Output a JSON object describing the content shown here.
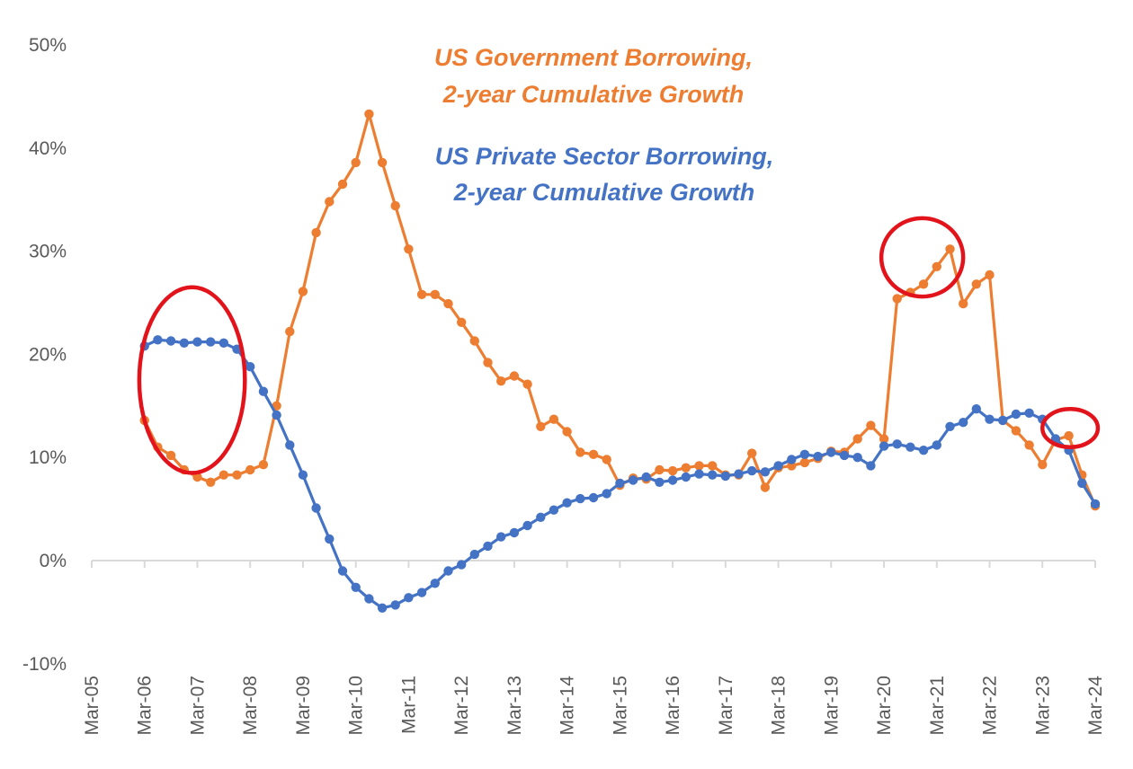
{
  "chart_data": {
    "type": "line",
    "title": "",
    "xlabel": "",
    "ylabel": "",
    "ylim": [
      -10,
      50
    ],
    "y_ticks": [
      "-10%",
      "0%",
      "10%",
      "20%",
      "30%",
      "40%",
      "50%"
    ],
    "y_tick_values": [
      -10,
      0,
      10,
      20,
      30,
      40,
      50
    ],
    "x_ticks": [
      "Mar-05",
      "Mar-06",
      "Mar-07",
      "Mar-08",
      "Mar-09",
      "Mar-10",
      "Mar-11",
      "Mar-12",
      "Mar-13",
      "Mar-14",
      "Mar-15",
      "Mar-16",
      "Mar-17",
      "Mar-18",
      "Mar-19",
      "Mar-20",
      "Mar-21",
      "Mar-22",
      "Mar-23",
      "Mar-24"
    ],
    "x_tick_values": [
      2005,
      2006,
      2007,
      2008,
      2009,
      2010,
      2011,
      2012,
      2013,
      2014,
      2015,
      2016,
      2017,
      2018,
      2019,
      2020,
      2021,
      2022,
      2023,
      2024
    ],
    "xlim": [
      2005,
      2024
    ],
    "annotations": {
      "gov_line1": "US Government Borrowing,",
      "gov_line2": "2-year Cumulative Growth",
      "priv_line1": "US Private Sector Borrowing,",
      "priv_line2": "2-year Cumulative Growth"
    },
    "highlight_circles": [
      {
        "name": "circle-2006-2008",
        "x_range": [
          2005.9,
          2007.9
        ],
        "y_range": [
          8.5,
          26.5
        ]
      },
      {
        "name": "circle-2020-2022",
        "x_range": [
          2019.95,
          2021.5
        ],
        "y_range": [
          25.6,
          33.2
        ]
      },
      {
        "name": "circle-2023",
        "x_range": [
          2023.0,
          2024.05
        ],
        "y_range": [
          11.0,
          14.7
        ]
      }
    ],
    "series": [
      {
        "name": "US Government Borrowing, 2-year Cumulative Growth",
        "color": "#ED7D31",
        "x": [
          2006.0,
          2006.25,
          2006.5,
          2006.75,
          2007.0,
          2007.25,
          2007.5,
          2007.75,
          2008.0,
          2008.25,
          2008.5,
          2008.75,
          2009.0,
          2009.25,
          2009.5,
          2009.75,
          2010.0,
          2010.25,
          2010.5,
          2010.75,
          2011.0,
          2011.25,
          2011.5,
          2011.75,
          2012.0,
          2012.25,
          2012.5,
          2012.75,
          2013.0,
          2013.25,
          2013.5,
          2013.75,
          2014.0,
          2014.25,
          2014.5,
          2014.75,
          2015.0,
          2015.25,
          2015.5,
          2015.75,
          2016.0,
          2016.25,
          2016.5,
          2016.75,
          2017.0,
          2017.25,
          2017.5,
          2017.75,
          2018.0,
          2018.25,
          2018.5,
          2018.75,
          2019.0,
          2019.25,
          2019.5,
          2019.75,
          2020.0,
          2020.25,
          2020.5,
          2020.75,
          2021.0,
          2021.25,
          2021.5,
          2021.75,
          2022.0,
          2022.25,
          2022.5,
          2022.75,
          2023.0,
          2023.25,
          2023.5,
          2023.75,
          2024.0
        ],
        "values": [
          13.6,
          11.0,
          10.2,
          8.8,
          8.1,
          7.6,
          8.3,
          8.3,
          8.8,
          9.3,
          15.0,
          22.2,
          26.1,
          31.8,
          34.8,
          36.5,
          38.6,
          43.3,
          38.6,
          34.4,
          30.2,
          25.8,
          25.8,
          24.9,
          23.1,
          21.3,
          19.2,
          17.4,
          17.9,
          17.1,
          13.0,
          13.7,
          12.5,
          10.5,
          10.3,
          9.8,
          7.3,
          8.0,
          7.9,
          8.8,
          8.7,
          9.0,
          9.2,
          9.2,
          8.3,
          8.3,
          10.4,
          7.1,
          9.0,
          9.2,
          9.5,
          9.9,
          10.6,
          10.5,
          11.8,
          13.1,
          11.8,
          25.4,
          26.0,
          26.8,
          28.5,
          30.2,
          24.9,
          26.8,
          27.7,
          13.6,
          12.6,
          11.2,
          9.3,
          11.7,
          12.1,
          8.3,
          5.3
        ]
      },
      {
        "name": "US Private Sector Borrowing, 2-year Cumulative Growth",
        "color": "#4472C4",
        "x": [
          2006.0,
          2006.25,
          2006.5,
          2006.75,
          2007.0,
          2007.25,
          2007.5,
          2007.75,
          2008.0,
          2008.25,
          2008.5,
          2008.75,
          2009.0,
          2009.25,
          2009.5,
          2009.75,
          2010.0,
          2010.25,
          2010.5,
          2010.75,
          2011.0,
          2011.25,
          2011.5,
          2011.75,
          2012.0,
          2012.25,
          2012.5,
          2012.75,
          2013.0,
          2013.25,
          2013.5,
          2013.75,
          2014.0,
          2014.25,
          2014.5,
          2014.75,
          2015.0,
          2015.25,
          2015.5,
          2015.75,
          2016.0,
          2016.25,
          2016.5,
          2016.75,
          2017.0,
          2017.25,
          2017.5,
          2017.75,
          2018.0,
          2018.25,
          2018.5,
          2018.75,
          2019.0,
          2019.25,
          2019.5,
          2019.75,
          2020.0,
          2020.25,
          2020.5,
          2020.75,
          2021.0,
          2021.25,
          2021.5,
          2021.75,
          2022.0,
          2022.25,
          2022.5,
          2022.75,
          2023.0,
          2023.25,
          2023.5,
          2023.75,
          2024.0
        ],
        "values": [
          20.8,
          21.4,
          21.3,
          21.1,
          21.2,
          21.2,
          21.1,
          20.5,
          18.8,
          16.4,
          14.1,
          11.2,
          8.3,
          5.1,
          2.1,
          -1.0,
          -2.6,
          -3.7,
          -4.6,
          -4.3,
          -3.6,
          -3.1,
          -2.2,
          -1.0,
          -0.4,
          0.6,
          1.4,
          2.3,
          2.7,
          3.4,
          4.2,
          4.9,
          5.6,
          6.0,
          6.1,
          6.5,
          7.5,
          7.8,
          8.1,
          7.6,
          7.8,
          8.1,
          8.4,
          8.3,
          8.2,
          8.4,
          8.7,
          8.6,
          9.2,
          9.8,
          10.3,
          10.1,
          10.5,
          10.2,
          10.0,
          9.2,
          11.1,
          11.3,
          11.0,
          10.7,
          11.2,
          13.0,
          13.4,
          14.7,
          13.7,
          13.6,
          14.2,
          14.3,
          13.7,
          11.8,
          10.7,
          7.5,
          5.5
        ]
      }
    ]
  }
}
